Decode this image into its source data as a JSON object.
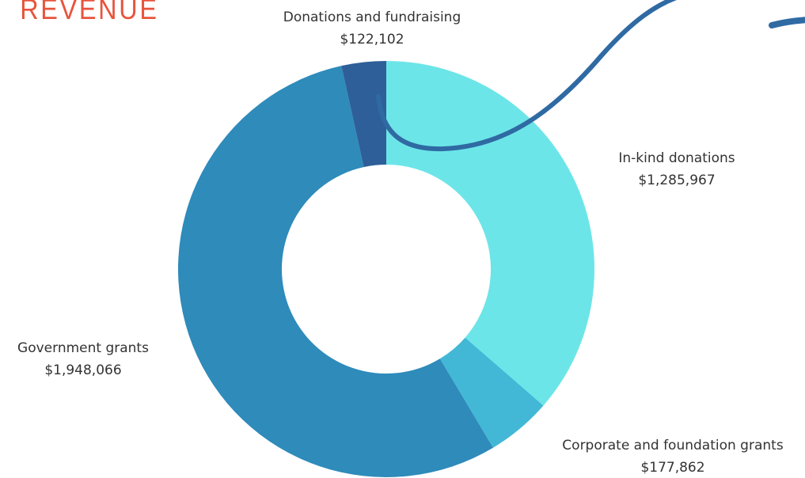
{
  "chart_data": {
    "type": "donut",
    "title": "REVENUE",
    "categories": [
      "In-kind donations",
      "Corporate and foundation grants",
      "Government grants",
      "Donations and fundraising"
    ],
    "values": [
      1285967,
      177862,
      1948066,
      122102
    ],
    "value_labels": [
      "$1,285,967",
      "$177,862",
      "$1,948,066",
      "$122,102"
    ],
    "colors": [
      "#6ce5e8",
      "#42b8d6",
      "#2e8bba",
      "#2e5f99"
    ]
  }
}
